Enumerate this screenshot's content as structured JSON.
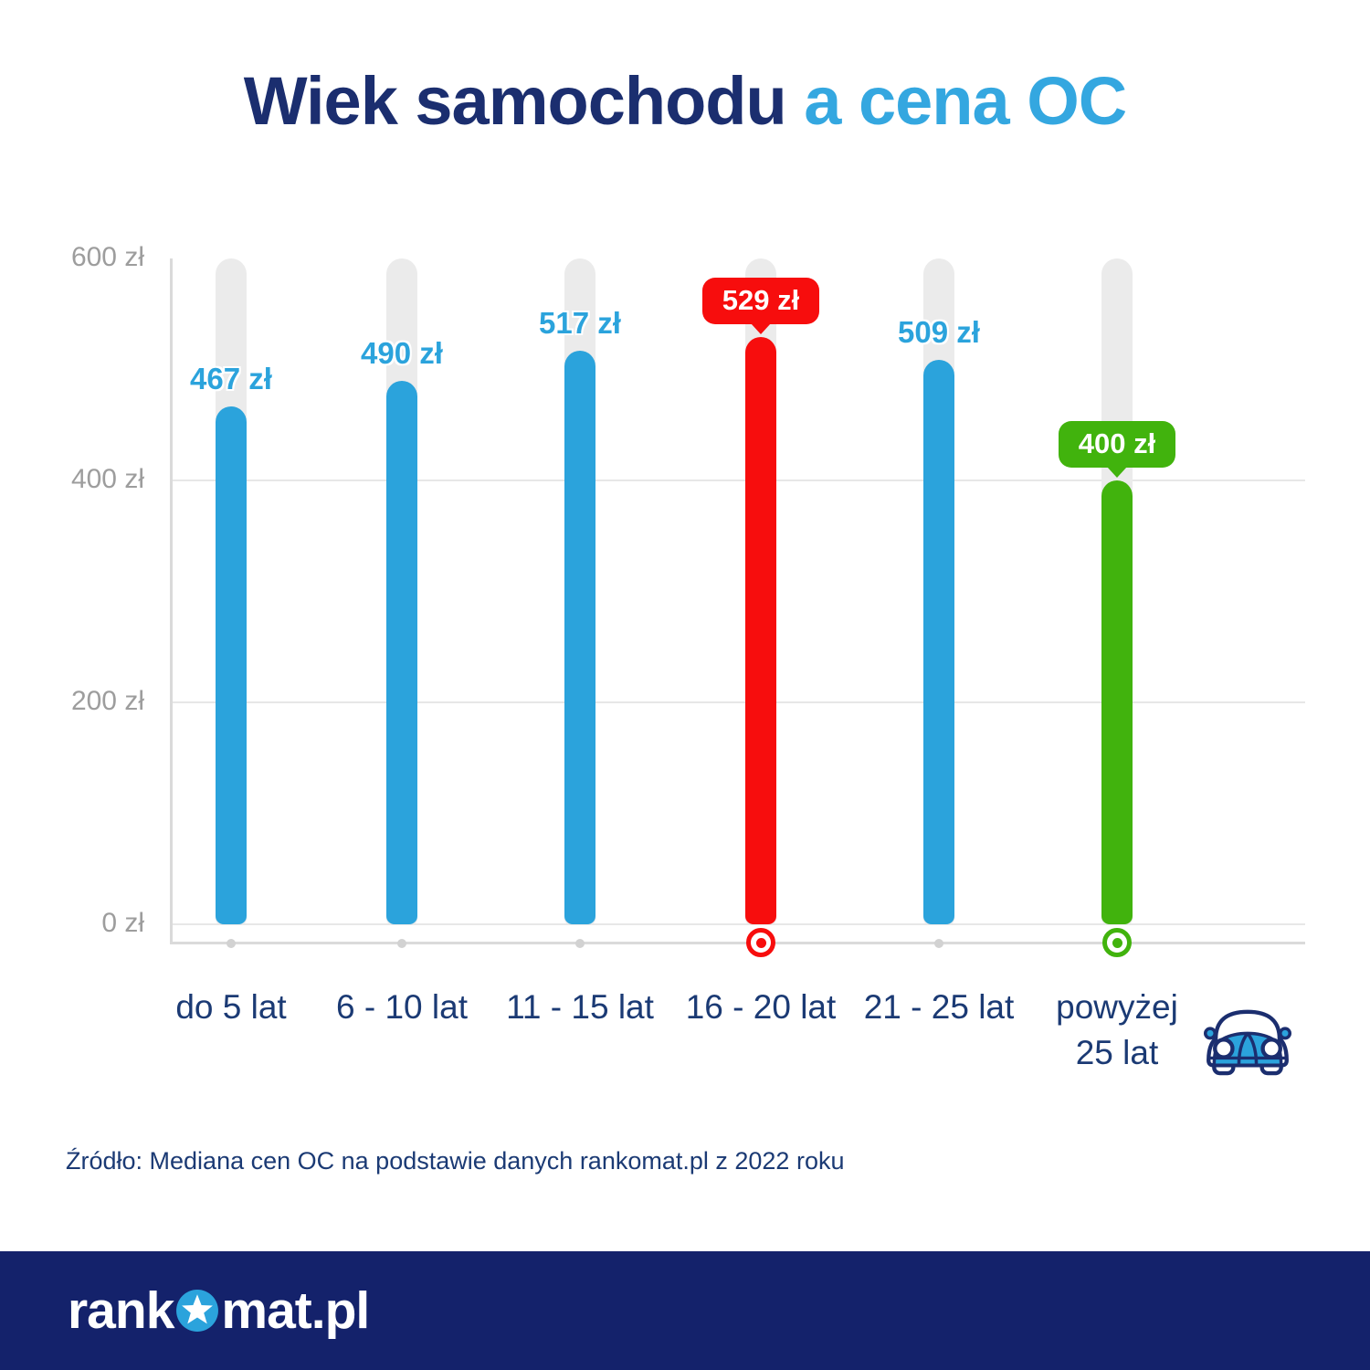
{
  "title": {
    "main": "Wiek samochodu",
    "accent": "a cena OC"
  },
  "chart_data": {
    "type": "bar",
    "title": "Wiek samochodu a cena OC",
    "categories": [
      "do 5 lat",
      "6 - 10 lat",
      "11 - 15 lat",
      "16 - 20 lat",
      "21 - 25 lat",
      "powyżej\n25 lat"
    ],
    "values": [
      467,
      490,
      517,
      529,
      509,
      400
    ],
    "value_labels": [
      "467 zł",
      "490 zł",
      "517 zł",
      "529 zł",
      "509 zł",
      "400 zł"
    ],
    "label_styles": [
      "text",
      "text",
      "text",
      "badge",
      "text",
      "badge"
    ],
    "bar_styles": [
      "blue",
      "blue",
      "blue",
      "red",
      "blue",
      "green"
    ],
    "marker_styles": [
      "dot",
      "dot",
      "dot",
      "bullseye-red",
      "dot",
      "bullseye-green"
    ],
    "xlabel": "",
    "ylabel": "",
    "ylim": [
      0,
      600
    ],
    "ytick_values": [
      600,
      400,
      200,
      0
    ],
    "ytick_labels": [
      "600 zł",
      "400 zł",
      "200 zł",
      "0 zł"
    ],
    "gridline_values": [
      400,
      200,
      0
    ],
    "background_tracks_to": 600,
    "grid": "horizontal",
    "legend": null
  },
  "source_note": "Źródło: Mediana cen OC na podstawie danych rankomat.pl z 2022 roku",
  "footer": {
    "logo_prefix": "rank",
    "logo_suffix": "mat.pl"
  },
  "icons": {
    "car_icon": "vintage-car-front",
    "logo_o_icon": "star-in-circle"
  },
  "colors": {
    "navy": "#1b2e6f",
    "accent_blue": "#34a7e0",
    "bar_blue": "#2ba3dc",
    "bar_red": "#f70d0d",
    "bar_green": "#41b30d",
    "track_gray": "#ebebeb",
    "axis_gray": "#dadada",
    "grid_gray": "#e7e7e7",
    "tick_gray": "#9d9d9d",
    "category_navy": "#1b3a74",
    "footer_bg": "#14226b"
  }
}
